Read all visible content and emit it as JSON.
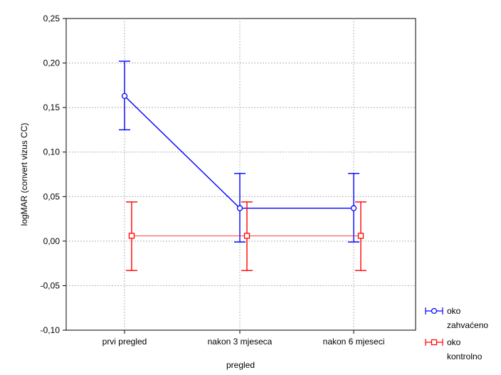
{
  "chart_data": {
    "type": "line",
    "title": "",
    "xlabel": "pregled",
    "ylabel": "logMAR (convert vizus CC)",
    "categories": [
      "prvi pregled",
      "nakon 3 mjeseca",
      "nakon 6 mjeseci"
    ],
    "ylim": [
      -0.1,
      0.25
    ],
    "yticks": [
      "0,25",
      "0,20",
      "0,15",
      "0,10",
      "0,05",
      "0,00",
      "-0,05",
      "-0,10"
    ],
    "ytick_values": [
      0.25,
      0.2,
      0.15,
      0.1,
      0.05,
      0.0,
      -0.05,
      -0.1
    ],
    "grid": true,
    "legend_position": "bottom-right",
    "series": [
      {
        "name_lines": [
          "oko",
          "zahvaćeno"
        ],
        "color": "#0000ff",
        "marker": "circle",
        "values": [
          0.163,
          0.037,
          0.037
        ],
        "lower": [
          0.125,
          -0.001,
          -0.001
        ],
        "upper": [
          0.202,
          0.076,
          0.076
        ]
      },
      {
        "name_lines": [
          "oko",
          "kontrolno"
        ],
        "color": "#ff0000",
        "marker": "square",
        "values": [
          0.006,
          0.006,
          0.006
        ],
        "lower": [
          -0.033,
          -0.033,
          -0.033
        ],
        "upper": [
          0.044,
          0.044,
          0.044
        ]
      }
    ]
  }
}
